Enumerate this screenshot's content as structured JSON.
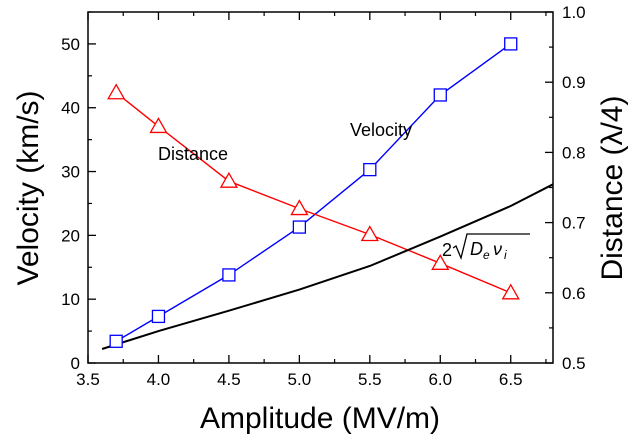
{
  "chart_data": {
    "type": "line",
    "x_axis": {
      "label": "Amplitude (MV/m)",
      "range": [
        3.5,
        6.8
      ],
      "ticks": [
        3.5,
        4.0,
        4.5,
        5.0,
        5.5,
        6.0,
        6.5
      ],
      "tick_labels": [
        "3.5",
        "4.0",
        "4.5",
        "5.0",
        "5.5",
        "6.0",
        "6.5"
      ]
    },
    "y_axis_left": {
      "label": "Velocity (km/s)",
      "range": [
        0,
        55
      ],
      "ticks": [
        0,
        10,
        20,
        30,
        40,
        50
      ],
      "tick_labels": [
        "0",
        "10",
        "20",
        "30",
        "40",
        "50"
      ]
    },
    "y_axis_right": {
      "label": "Distance (λ/4)",
      "range": [
        0.5,
        1.0
      ],
      "ticks": [
        0.5,
        0.6,
        0.7,
        0.8,
        0.9,
        1.0
      ],
      "tick_labels": [
        "0.5",
        "0.6",
        "0.7",
        "0.8",
        "0.9",
        "1.0"
      ]
    },
    "series": [
      {
        "name": "Velocity",
        "axis": "left",
        "marker": "square",
        "color": "#0000ff",
        "x": [
          3.7,
          4.0,
          4.5,
          5.0,
          5.5,
          6.0,
          6.5
        ],
        "y": [
          3.4,
          7.3,
          13.8,
          21.3,
          30.3,
          42.0,
          50.0
        ]
      },
      {
        "name": "Distance",
        "axis": "right",
        "marker": "triangle",
        "color": "#ff0000",
        "x": [
          3.7,
          4.0,
          4.5,
          5.0,
          5.5,
          6.0,
          6.5
        ],
        "y": [
          0.885,
          0.837,
          0.759,
          0.72,
          0.683,
          0.642,
          0.6
        ]
      },
      {
        "name": "2√(Deνi)",
        "axis": "left",
        "marker": "none",
        "color": "#000000",
        "x": [
          3.6,
          3.8,
          4.0,
          4.5,
          5.0,
          5.5,
          6.0,
          6.5,
          6.8
        ],
        "y": [
          2.2,
          3.6,
          5.0,
          8.2,
          11.5,
          15.2,
          19.8,
          24.6,
          28.0
        ]
      }
    ],
    "annotations": {
      "velocity_label": "Velocity",
      "distance_label": "Distance",
      "formula_coeff": "2",
      "formula_D": "D",
      "formula_e": "e",
      "formula_nu": "ν",
      "formula_i": "i"
    },
    "grid": false,
    "legend": "none"
  }
}
